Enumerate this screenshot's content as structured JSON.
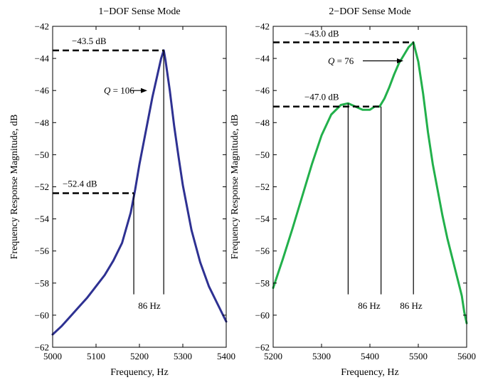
{
  "chart_data": [
    {
      "type": "line",
      "title": "1−DOF Sense Mode",
      "xlabel": "Frequency, Hz",
      "ylabel": "Frequency Response Magnitude, dB",
      "xlim": [
        5000,
        5400
      ],
      "ylim": [
        -62,
        -42
      ],
      "xticks": [
        5000,
        5100,
        5200,
        5300,
        5400
      ],
      "xtick_labels": [
        "5000",
        "5100",
        "5200",
        "5300",
        "5400"
      ],
      "yticks": [
        -62,
        -60,
        -58,
        -56,
        -54,
        -52,
        -50,
        -48,
        -46,
        -44,
        -42
      ],
      "ytick_labels": [
        "−62",
        "−60",
        "−58",
        "−56",
        "−54",
        "−52",
        "−50",
        "−48",
        "−46",
        "−44",
        "−42"
      ],
      "grid": false,
      "series": [
        {
          "color": "#2e3192",
          "x": [
            5000,
            5020,
            5040,
            5060,
            5080,
            5100,
            5120,
            5140,
            5160,
            5180,
            5190,
            5200,
            5210,
            5220,
            5230,
            5240,
            5250,
            5256,
            5260,
            5270,
            5280,
            5290,
            5300,
            5320,
            5340,
            5360,
            5380,
            5400
          ],
          "y": [
            -61.2,
            -60.7,
            -60.1,
            -59.5,
            -58.9,
            -58.2,
            -57.5,
            -56.6,
            -55.5,
            -53.6,
            -52.2,
            -50.6,
            -49.2,
            -47.8,
            -46.4,
            -45.2,
            -44.0,
            -43.5,
            -44.1,
            -46.0,
            -48.2,
            -50.1,
            -51.9,
            -54.7,
            -56.7,
            -58.2,
            -59.3,
            -60.4
          ]
        }
      ],
      "hlines": [
        {
          "y": -43.5,
          "x_from": 5000,
          "x_to": 5256
        },
        {
          "y": -52.4,
          "x_from": 5000,
          "x_to": 5187
        }
      ],
      "vlines": [
        {
          "x": 5187,
          "y_from": -52.4,
          "y_to": -58.7
        },
        {
          "x": 5256,
          "y_from": -43.5,
          "y_to": -58.7
        }
      ],
      "annotations": {
        "peak_db": "−43.5 dB",
        "half_db": "−52.4 dB",
        "q_prefix": "Q",
        "q_value": " = 106",
        "bw": "86 Hz"
      }
    },
    {
      "type": "line",
      "title": "2−DOF Sense Mode",
      "xlabel": "Frequency, Hz",
      "ylabel": "Frequency Response Magnitude, dB",
      "xlim": [
        5200,
        5600
      ],
      "ylim": [
        -62,
        -42
      ],
      "xticks": [
        5200,
        5300,
        5400,
        5500,
        5600
      ],
      "xtick_labels": [
        "5200",
        "5300",
        "5400",
        "5500",
        "5600"
      ],
      "yticks": [
        -62,
        -60,
        -58,
        -56,
        -54,
        -52,
        -50,
        -48,
        -46,
        -44,
        -42
      ],
      "ytick_labels": [
        "−62",
        "−60",
        "−58",
        "−56",
        "−54",
        "−52",
        "−50",
        "−48",
        "−46",
        "−44",
        "−42"
      ],
      "grid": false,
      "series": [
        {
          "color": "#22b04b",
          "x": [
            5200,
            5220,
            5240,
            5260,
            5280,
            5300,
            5320,
            5340,
            5355,
            5370,
            5385,
            5400,
            5410,
            5420,
            5430,
            5440,
            5450,
            5460,
            5470,
            5480,
            5490,
            5500,
            5510,
            5520,
            5530,
            5540,
            5550,
            5560,
            5570,
            5580,
            5590,
            5595,
            5600
          ],
          "y": [
            -58.3,
            -56.5,
            -54.6,
            -52.6,
            -50.6,
            -48.8,
            -47.5,
            -46.9,
            -46.8,
            -47.0,
            -47.2,
            -47.2,
            -47.0,
            -47.0,
            -46.5,
            -45.8,
            -45.0,
            -44.3,
            -43.8,
            -43.3,
            -43.0,
            -44.2,
            -46.2,
            -48.6,
            -50.6,
            -52.2,
            -53.8,
            -55.2,
            -56.4,
            -57.6,
            -58.8,
            -59.8,
            -60.5
          ]
        }
      ],
      "hlines": [
        {
          "y": -43.0,
          "x_from": 5200,
          "x_to": 5490
        },
        {
          "y": -47.0,
          "x_from": 5200,
          "x_to": 5423
        }
      ],
      "vlines": [
        {
          "x": 5355,
          "y_from": -46.8,
          "y_to": -58.7
        },
        {
          "x": 5423,
          "y_from": -47.0,
          "y_to": -58.7
        },
        {
          "x": 5490,
          "y_from": -43.0,
          "y_to": -58.7
        }
      ],
      "annotations": {
        "peak_db": "−43.0 dB",
        "half_db": "−47.0 dB",
        "q_prefix": "Q",
        "q_value": " = 76",
        "bw1": "86 Hz",
        "bw2": "86 Hz"
      }
    }
  ]
}
